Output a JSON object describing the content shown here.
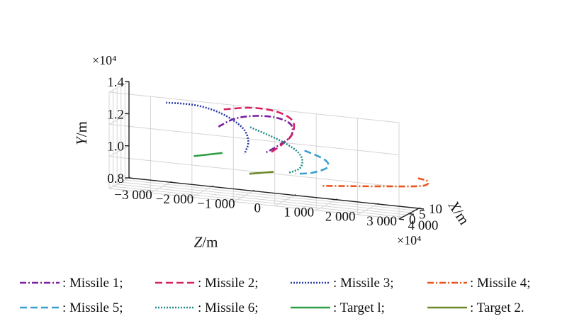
{
  "chart_data": {
    "type": "line3d",
    "title": "",
    "axes": {
      "z": {
        "label": "Z",
        "unit": "/m",
        "range": [
          -3000,
          4000
        ],
        "ticks": [
          -3000,
          -2000,
          -1000,
          0,
          1000,
          2000,
          3000,
          4000
        ],
        "tick_labels": [
          "−3 000",
          "−2 000",
          "−1 000",
          "0",
          "1 000",
          "2 000",
          "3 000",
          "4 000"
        ]
      },
      "x": {
        "label": "X",
        "unit": "/m",
        "multiplier": "×10⁴",
        "range": [
          0,
          10
        ],
        "ticks": [
          0,
          5,
          10
        ],
        "tick_labels": [
          "0",
          "5",
          "10"
        ]
      },
      "y": {
        "label": "Y",
        "unit": "/m",
        "multiplier": "×10⁴",
        "range": [
          0.8,
          1.4
        ],
        "ticks": [
          0.8,
          1.0,
          1.2,
          1.4
        ],
        "tick_labels": [
          "0.8",
          "1.0",
          "1.2",
          "1.4"
        ]
      }
    },
    "grid": true,
    "legend": {
      "placement": "bottom",
      "entries": [
        {
          "label": ": Missile 1;",
          "color": "#7b1fa2",
          "dash": "9 3 2 3"
        },
        {
          "label": ": Missile 2;",
          "color": "#d62060",
          "dash": "10 5"
        },
        {
          "label": ": Missile 3;",
          "color": "#2b3aa8",
          "dash": "2 2"
        },
        {
          "label": ": Missile 4;",
          "color": "#e8561e",
          "dash": "9 3 2 3"
        },
        {
          "label": ": Missile 5;",
          "color": "#3a9fd0",
          "dash": "10 5"
        },
        {
          "label": ": Missile 6;",
          "color": "#1f8a86",
          "dash": "2 2"
        },
        {
          "label": ": Target l;",
          "color": "#2e9e46",
          "dash": "none"
        },
        {
          "label": ": Target 2.",
          "color": "#6b8a2a",
          "dash": "none"
        }
      ]
    },
    "series": [
      {
        "legend_index": 0,
        "points": [
          [
            -700,
            7.1,
            1.2
          ],
          [
            -250,
            6.0,
            1.27
          ],
          [
            300,
            4.8,
            1.31
          ],
          [
            800,
            4.0,
            1.32
          ],
          [
            1150,
            3.7,
            1.3
          ],
          [
            1250,
            3.8,
            1.26
          ],
          [
            1150,
            4.3,
            1.2
          ],
          [
            800,
            5.0,
            1.13
          ],
          [
            500,
            5.5,
            1.08
          ]
        ]
      },
      {
        "legend_index": 1,
        "points": [
          [
            -400,
            3.5,
            1.34
          ],
          [
            300,
            3.3,
            1.37
          ],
          [
            900,
            3.4,
            1.36
          ],
          [
            1250,
            3.8,
            1.31
          ],
          [
            1200,
            4.5,
            1.22
          ],
          [
            900,
            5.2,
            1.14
          ],
          [
            600,
            5.7,
            1.08
          ]
        ]
      },
      {
        "legend_index": 2,
        "points": [
          [
            -1700,
            1.5,
            1.36
          ],
          [
            -1000,
            1.9,
            1.36
          ],
          [
            -400,
            2.5,
            1.32
          ],
          [
            50,
            3.4,
            1.24
          ],
          [
            150,
            4.4,
            1.15
          ],
          [
            0,
            5.6,
            1.06
          ]
        ]
      },
      {
        "legend_index": 3,
        "points": [
          [
            4300,
            3.3,
            1.04
          ],
          [
            4500,
            4.1,
            1.02
          ],
          [
            4300,
            5.1,
            0.98
          ],
          [
            3300,
            6.7,
            0.94
          ],
          [
            2300,
            8.1,
            0.905
          ],
          [
            1700,
            8.9,
            0.885
          ]
        ]
      },
      {
        "legend_index": 4,
        "points": [
          [
            1450,
            5.6,
            1.12
          ],
          [
            1950,
            5.2,
            1.08
          ],
          [
            2000,
            5.7,
            1.03
          ],
          [
            1600,
            6.6,
            0.98
          ],
          [
            1150,
            7.4,
            0.955
          ]
        ]
      },
      {
        "legend_index": 5,
        "points": [
          [
            200,
            4.3,
            1.24
          ],
          [
            900,
            4.2,
            1.18
          ],
          [
            1300,
            4.7,
            1.12
          ],
          [
            1400,
            5.5,
            1.06
          ],
          [
            1300,
            6.2,
            1.0
          ],
          [
            1000,
            7.0,
            0.96
          ]
        ]
      },
      {
        "legend_index": 6,
        "points": [
          [
            -1300,
            7.2,
            1.0
          ],
          [
            -950,
            7.1,
            1.02
          ],
          [
            -600,
            7.0,
            1.04
          ]
        ]
      },
      {
        "legend_index": 7,
        "points": [
          [
            0,
            8.0,
            0.92
          ],
          [
            300,
            7.9,
            0.935
          ],
          [
            600,
            7.8,
            0.95
          ]
        ]
      }
    ]
  }
}
